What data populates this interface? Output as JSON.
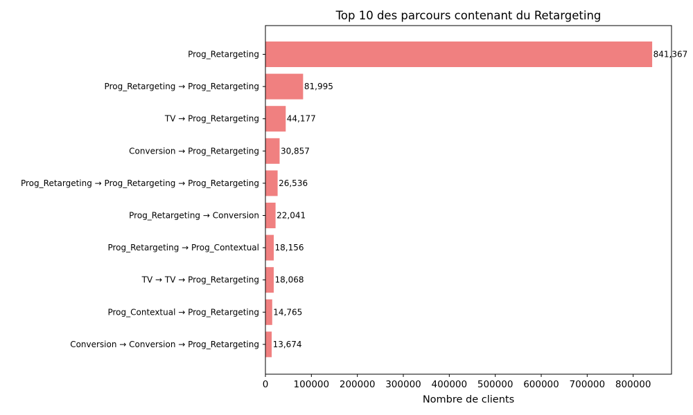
{
  "chart_data": {
    "type": "bar",
    "orientation": "horizontal",
    "title": "Top 10 des parcours contenant du Retargeting",
    "xlabel": "Nombre de clients",
    "ylabel": "",
    "bar_color": "#f08080",
    "categories": [
      "Prog_Retargeting",
      "Prog_Retargeting → Prog_Retargeting",
      "TV → Prog_Retargeting",
      "Conversion → Prog_Retargeting",
      "Prog_Retargeting → Prog_Retargeting → Prog_Retargeting",
      "Prog_Retargeting → Conversion",
      "Prog_Retargeting → Prog_Contextual",
      "TV → TV → Prog_Retargeting",
      "Prog_Contextual → Prog_Retargeting",
      "Conversion → Conversion → Prog_Retargeting"
    ],
    "values": [
      841367,
      81995,
      44177,
      30857,
      26536,
      22041,
      18156,
      18068,
      14765,
      13674
    ],
    "value_labels": [
      "841,367",
      "81,995",
      "44,177",
      "30,857",
      "26,536",
      "22,041",
      "18,156",
      "18,068",
      "14,765",
      "13,674"
    ],
    "xticks": [
      0,
      100000,
      200000,
      300000,
      400000,
      500000,
      600000,
      700000,
      800000
    ],
    "xtick_labels": [
      "0",
      "100000",
      "200000",
      "300000",
      "400000",
      "500000",
      "600000",
      "700000",
      "800000"
    ],
    "xlim": [
      0,
      883435
    ],
    "grid": false,
    "legend": "none"
  }
}
